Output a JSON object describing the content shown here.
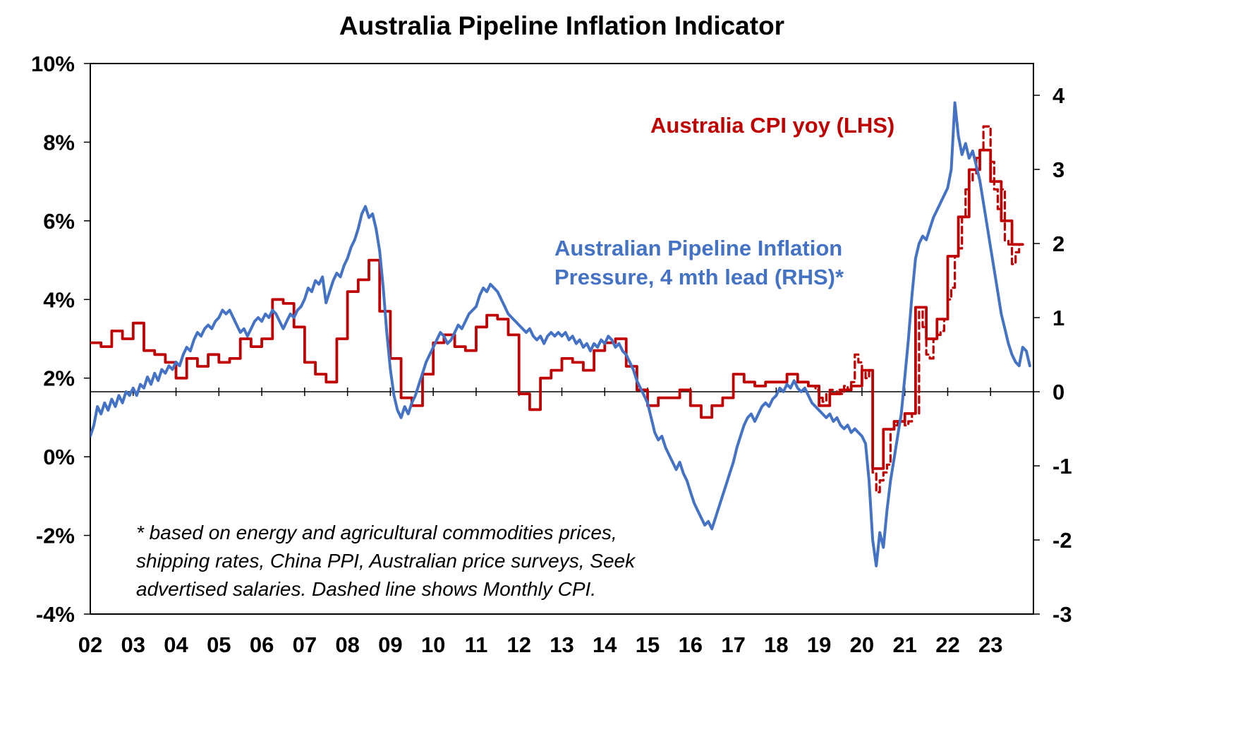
{
  "title": "Australia Pipeline Inflation Indicator",
  "annotations": {
    "cpi_label": "Australia CPI yoy (LHS)",
    "pipeline_label_line1": "Australian Pipeline Inflation",
    "pipeline_label_line2": "Pressure, 4 mth lead (RHS)*",
    "footnote_line1": "* based on energy and agricultural commodities prices,",
    "footnote_line2": "shipping rates, China PPI, Australian price surveys, Seek",
    "footnote_line3": "advertised salaries. Dashed line shows Monthly CPI."
  },
  "colors": {
    "cpi": "#C00000",
    "pipeline": "#4472C4",
    "axis": "#000000",
    "background": "#FFFFFF"
  },
  "chart_data": {
    "type": "line",
    "title": "Australia Pipeline Inflation Indicator",
    "grid": false,
    "legend_position": "inline-text-labels",
    "x_axis": {
      "labels": [
        "02",
        "03",
        "04",
        "05",
        "06",
        "07",
        "08",
        "09",
        "10",
        "11",
        "12",
        "13",
        "14",
        "15",
        "16",
        "17",
        "18",
        "19",
        "20",
        "21",
        "22",
        "23"
      ],
      "range": [
        2002,
        2024
      ]
    },
    "left_axis": {
      "tick_labels": [
        "10%",
        "8%",
        "6%",
        "4%",
        "2%",
        "0%",
        "-2%",
        "-4%"
      ],
      "tick_values": [
        10,
        8,
        6,
        4,
        2,
        0,
        -2,
        -4
      ],
      "range": [
        -4,
        10
      ]
    },
    "right_axis": {
      "tick_labels": [
        "4",
        "3",
        "2",
        "1",
        "0",
        "-1",
        "-2",
        "-3"
      ],
      "tick_values": [
        4,
        3,
        2,
        1,
        0,
        -1,
        -2,
        -3
      ],
      "range": [
        -3,
        4
      ]
    },
    "zero_line_right_value": 0,
    "series": [
      {
        "name": "Australia CPI yoy (LHS)",
        "data_name": "cpi-yoy-line",
        "axis": "left",
        "style": "step",
        "dash": false,
        "color": "#C00000",
        "start": 2002.0,
        "interval": 0.25,
        "values": [
          2.9,
          2.8,
          3.2,
          3.0,
          3.4,
          2.7,
          2.6,
          2.4,
          2.0,
          2.5,
          2.3,
          2.6,
          2.4,
          2.5,
          3.0,
          2.8,
          3.0,
          4.0,
          3.9,
          3.3,
          2.4,
          2.1,
          1.9,
          3.0,
          4.2,
          4.5,
          5.0,
          3.7,
          2.5,
          1.5,
          1.3,
          2.1,
          2.9,
          3.1,
          2.8,
          2.7,
          3.3,
          3.6,
          3.5,
          3.1,
          1.6,
          1.2,
          2.0,
          2.2,
          2.5,
          2.4,
          2.2,
          2.7,
          2.9,
          3.0,
          2.3,
          1.7,
          1.3,
          1.5,
          1.5,
          1.7,
          1.3,
          1.0,
          1.3,
          1.5,
          2.1,
          1.9,
          1.8,
          1.9,
          1.9,
          2.1,
          1.9,
          1.8,
          1.3,
          1.6,
          1.7,
          1.8,
          2.2,
          -0.3,
          0.7,
          0.9,
          1.1,
          3.8,
          3.0,
          3.5,
          5.1,
          6.1,
          7.3,
          7.8,
          7.0,
          6.0,
          5.4
        ]
      },
      {
        "name": "Monthly CPI yoy (dashed)",
        "data_name": "monthly-cpi-dashed-line",
        "axis": "left",
        "style": "step",
        "dash": true,
        "color": "#C00000",
        "start": 2018.6667,
        "interval": 0.083333,
        "values": [
          1.9,
          1.8,
          1.8,
          1.7,
          1.5,
          1.4,
          1.6,
          1.7,
          1.6,
          1.7,
          1.6,
          1.8,
          1.7,
          1.9,
          2.6,
          2.4,
          2.2,
          2.0,
          2.2,
          -0.4,
          -0.9,
          -0.6,
          -0.4,
          -0.2,
          0.7,
          0.8,
          0.9,
          0.9,
          0.8,
          0.9,
          1.1,
          1.1,
          3.7,
          3.3,
          2.6,
          2.5,
          3.0,
          3.1,
          3.2,
          3.5,
          4.0,
          4.3,
          5.1,
          5.3,
          6.1,
          6.8,
          7.0,
          7.2,
          7.6,
          7.8,
          8.4,
          8.4,
          7.5,
          6.8,
          6.3,
          6.8,
          5.5,
          5.4,
          4.9,
          5.2,
          5.4
        ]
      },
      {
        "name": "Australian Pipeline Inflation Pressure, 4 mth lead (RHS)",
        "data_name": "pipeline-pressure-line",
        "axis": "right",
        "style": "line",
        "dash": false,
        "color": "#4472C4",
        "start": 2002.0,
        "interval": 0.083333,
        "values": [
          -0.6,
          -0.45,
          -0.2,
          -0.3,
          -0.15,
          -0.25,
          -0.1,
          -0.2,
          -0.05,
          -0.15,
          0.0,
          -0.05,
          0.05,
          -0.05,
          0.1,
          0.05,
          0.2,
          0.1,
          0.25,
          0.15,
          0.3,
          0.25,
          0.35,
          0.3,
          0.4,
          0.35,
          0.5,
          0.6,
          0.55,
          0.7,
          0.8,
          0.75,
          0.85,
          0.9,
          0.85,
          0.95,
          1.0,
          1.1,
          1.05,
          1.1,
          1.0,
          0.9,
          0.8,
          0.85,
          0.75,
          0.85,
          0.95,
          1.0,
          0.95,
          1.05,
          1.0,
          1.1,
          1.05,
          0.95,
          0.85,
          0.95,
          1.05,
          1.0,
          1.1,
          1.15,
          1.25,
          1.4,
          1.35,
          1.5,
          1.45,
          1.55,
          1.2,
          1.35,
          1.5,
          1.6,
          1.55,
          1.7,
          1.8,
          1.95,
          2.05,
          2.2,
          2.4,
          2.5,
          2.35,
          2.4,
          2.2,
          1.9,
          1.4,
          0.8,
          0.3,
          -0.05,
          -0.25,
          -0.35,
          -0.2,
          -0.3,
          -0.15,
          -0.05,
          0.1,
          0.25,
          0.4,
          0.5,
          0.6,
          0.7,
          0.8,
          0.75,
          0.65,
          0.7,
          0.8,
          0.9,
          0.85,
          0.95,
          1.05,
          1.1,
          1.15,
          1.3,
          1.4,
          1.35,
          1.45,
          1.4,
          1.35,
          1.25,
          1.15,
          1.05,
          1.0,
          0.95,
          0.9,
          0.85,
          0.8,
          0.85,
          0.75,
          0.7,
          0.75,
          0.65,
          0.75,
          0.8,
          0.75,
          0.8,
          0.75,
          0.8,
          0.7,
          0.75,
          0.65,
          0.7,
          0.6,
          0.65,
          0.55,
          0.65,
          0.6,
          0.7,
          0.65,
          0.75,
          0.7,
          0.6,
          0.65,
          0.55,
          0.5,
          0.4,
          0.3,
          0.15,
          0.05,
          -0.05,
          -0.15,
          -0.35,
          -0.55,
          -0.65,
          -0.6,
          -0.75,
          -0.85,
          -0.95,
          -1.05,
          -0.95,
          -1.1,
          -1.2,
          -1.35,
          -1.5,
          -1.6,
          -1.7,
          -1.8,
          -1.75,
          -1.85,
          -1.7,
          -1.55,
          -1.4,
          -1.25,
          -1.1,
          -0.95,
          -0.75,
          -0.6,
          -0.45,
          -0.35,
          -0.3,
          -0.4,
          -0.3,
          -0.2,
          -0.15,
          -0.2,
          -0.1,
          -0.05,
          0.05,
          0.0,
          0.1,
          0.05,
          0.15,
          0.05,
          0.0,
          0.05,
          -0.05,
          -0.15,
          -0.2,
          -0.25,
          -0.3,
          -0.35,
          -0.3,
          -0.4,
          -0.35,
          -0.45,
          -0.5,
          -0.45,
          -0.55,
          -0.5,
          -0.55,
          -0.6,
          -0.7,
          -1.2,
          -2.0,
          -2.35,
          -1.9,
          -2.1,
          -1.6,
          -1.2,
          -0.9,
          -0.6,
          -0.3,
          0.2,
          0.7,
          1.3,
          1.8,
          2.0,
          2.1,
          2.05,
          2.2,
          2.35,
          2.45,
          2.55,
          2.65,
          2.75,
          3.0,
          3.9,
          3.45,
          3.2,
          3.35,
          3.15,
          3.25,
          3.05,
          2.85,
          2.55,
          2.25,
          1.95,
          1.65,
          1.35,
          1.05,
          0.85,
          0.65,
          0.5,
          0.4,
          0.35,
          0.6,
          0.55,
          0.35
        ]
      }
    ]
  }
}
